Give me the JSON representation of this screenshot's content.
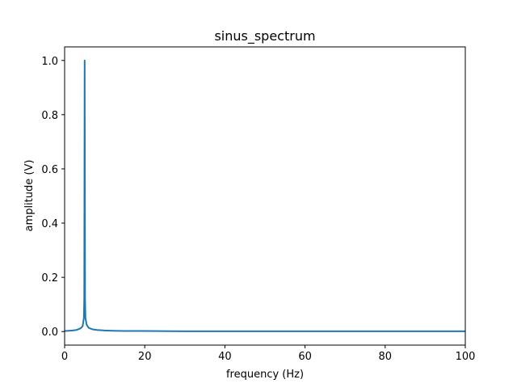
{
  "chart_data": {
    "type": "line",
    "title": "sinus_spectrum",
    "xlabel": "frequency (Hz)",
    "ylabel": "amplitude (V)",
    "xlim": [
      0,
      100
    ],
    "ylim": [
      -0.05,
      1.05
    ],
    "xticks": [
      0,
      20,
      40,
      60,
      80,
      100
    ],
    "yticks": [
      0.0,
      0.2,
      0.4,
      0.6,
      0.8,
      1.0
    ],
    "xtick_labels": [
      "0",
      "20",
      "40",
      "60",
      "80",
      "100"
    ],
    "ytick_labels": [
      "0.0",
      "0.2",
      "0.4",
      "0.6",
      "0.8",
      "1.0"
    ],
    "grid": false,
    "line_color": "#1f77b4",
    "series": [
      {
        "x": [
          0,
          1,
          2,
          3,
          4,
          4.5,
          4.8,
          4.9,
          5.0,
          5.1,
          5.2,
          5.5,
          6,
          7,
          8,
          10,
          12,
          15,
          20,
          30,
          40,
          50,
          60,
          70,
          80,
          90,
          100
        ],
        "y": [
          0.002,
          0.003,
          0.004,
          0.006,
          0.012,
          0.02,
          0.05,
          0.12,
          1.0,
          0.12,
          0.05,
          0.025,
          0.014,
          0.008,
          0.006,
          0.004,
          0.003,
          0.002,
          0.002,
          0.001,
          0.001,
          0.001,
          0.001,
          0.001,
          0.001,
          0.001,
          0.001
        ]
      }
    ]
  }
}
